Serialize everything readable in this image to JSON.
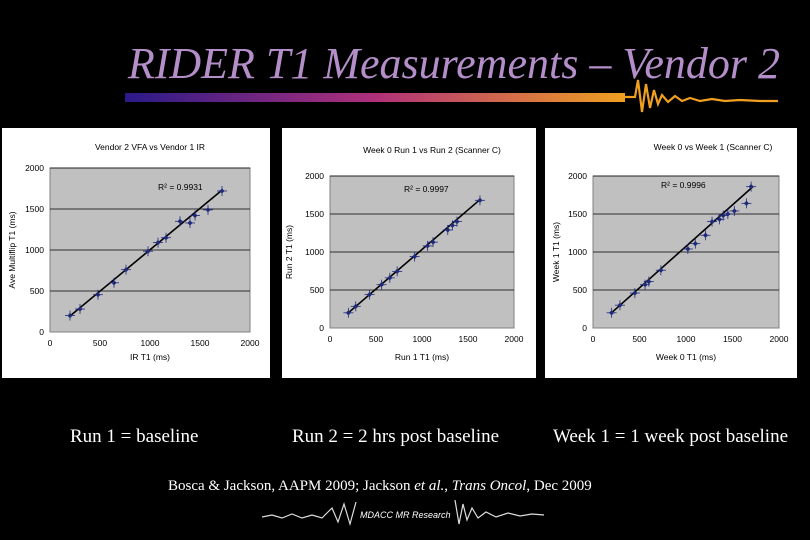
{
  "slide": {
    "title": "RIDER T1 Measurements – Vendor 2",
    "captions": [
      "Run 1 = baseline",
      "Run 2 = 2 hrs post baseline",
      "Week 1 = 1 week post baseline"
    ],
    "citation_a": "Bosca & Jackson, AAPM 2009;  Jackson ",
    "citation_b": "et al.",
    "citation_c": ", ",
    "citation_d": "Trans Oncol",
    "citation_e": ", Dec 2009",
    "footer": "MDACC MR Research",
    "colors": {
      "title": "#b48ec9",
      "plot_bg": "#c0c0c0",
      "series": "#1f2a7a",
      "fit": "#000000"
    }
  },
  "chart_data": [
    {
      "type": "scatter",
      "title": "Vendor 2 VFA vs Vendor 1 IR",
      "xlabel": "IR T1 (ms)",
      "ylabel": "Ave Multiflip T1 (ms)",
      "xlim": [
        0,
        2000
      ],
      "ylim": [
        0,
        2000
      ],
      "xticks": [
        0,
        500,
        1000,
        1500,
        2000
      ],
      "yticks": [
        0,
        500,
        1000,
        1500,
        2000
      ],
      "r2": "R² = 0.9931",
      "grid": true,
      "points": [
        [
          200,
          200
        ],
        [
          300,
          280
        ],
        [
          480,
          455
        ],
        [
          640,
          600
        ],
        [
          760,
          760
        ],
        [
          980,
          985
        ],
        [
          1080,
          1090
        ],
        [
          1160,
          1150
        ],
        [
          1300,
          1350
        ],
        [
          1400,
          1330
        ],
        [
          1450,
          1420
        ],
        [
          1580,
          1490
        ],
        [
          1720,
          1720
        ]
      ],
      "fit": [
        [
          200,
          195
        ],
        [
          1720,
          1730
        ]
      ]
    },
    {
      "type": "scatter",
      "title": "Week 0 Run 1 vs Run 2 (Scanner C)",
      "xlabel": "Run 1 T1 (ms)",
      "ylabel": "Run 2 T1 (ms)",
      "xlim": [
        0,
        2000
      ],
      "ylim": [
        0,
        2000
      ],
      "xticks": [
        0,
        500,
        1000,
        1500,
        2000
      ],
      "yticks": [
        0,
        500,
        1000,
        1500,
        2000
      ],
      "r2": "R² = 0.9997",
      "grid": true,
      "points": [
        [
          200,
          200
        ],
        [
          280,
          285
        ],
        [
          430,
          440
        ],
        [
          560,
          570
        ],
        [
          650,
          660
        ],
        [
          730,
          745
        ],
        [
          920,
          940
        ],
        [
          1060,
          1080
        ],
        [
          1120,
          1130
        ],
        [
          1280,
          1290
        ],
        [
          1330,
          1350
        ],
        [
          1380,
          1400
        ],
        [
          1630,
          1680
        ]
      ],
      "fit": [
        [
          190,
          190
        ],
        [
          1640,
          1700
        ]
      ]
    },
    {
      "type": "scatter",
      "title": "Week 0 vs Week 1 (Scanner C)",
      "xlabel": "Week 0 T1 (ms)",
      "ylabel": "Week 1 T1 (ms)",
      "xlim": [
        0,
        2000
      ],
      "ylim": [
        0,
        2000
      ],
      "xticks": [
        0,
        500,
        1000,
        1500,
        2000
      ],
      "yticks": [
        0,
        500,
        1000,
        1500,
        2000
      ],
      "r2": "R² = 0.9996",
      "grid": true,
      "points": [
        [
          200,
          200
        ],
        [
          290,
          300
        ],
        [
          450,
          460
        ],
        [
          560,
          570
        ],
        [
          600,
          610
        ],
        [
          730,
          760
        ],
        [
          1020,
          1040
        ],
        [
          1100,
          1110
        ],
        [
          1210,
          1220
        ],
        [
          1280,
          1400
        ],
        [
          1360,
          1430
        ],
        [
          1400,
          1480
        ],
        [
          1450,
          1500
        ],
        [
          1520,
          1540
        ],
        [
          1650,
          1640
        ],
        [
          1700,
          1860
        ]
      ],
      "fit": [
        [
          190,
          190
        ],
        [
          1720,
          1860
        ]
      ]
    }
  ]
}
